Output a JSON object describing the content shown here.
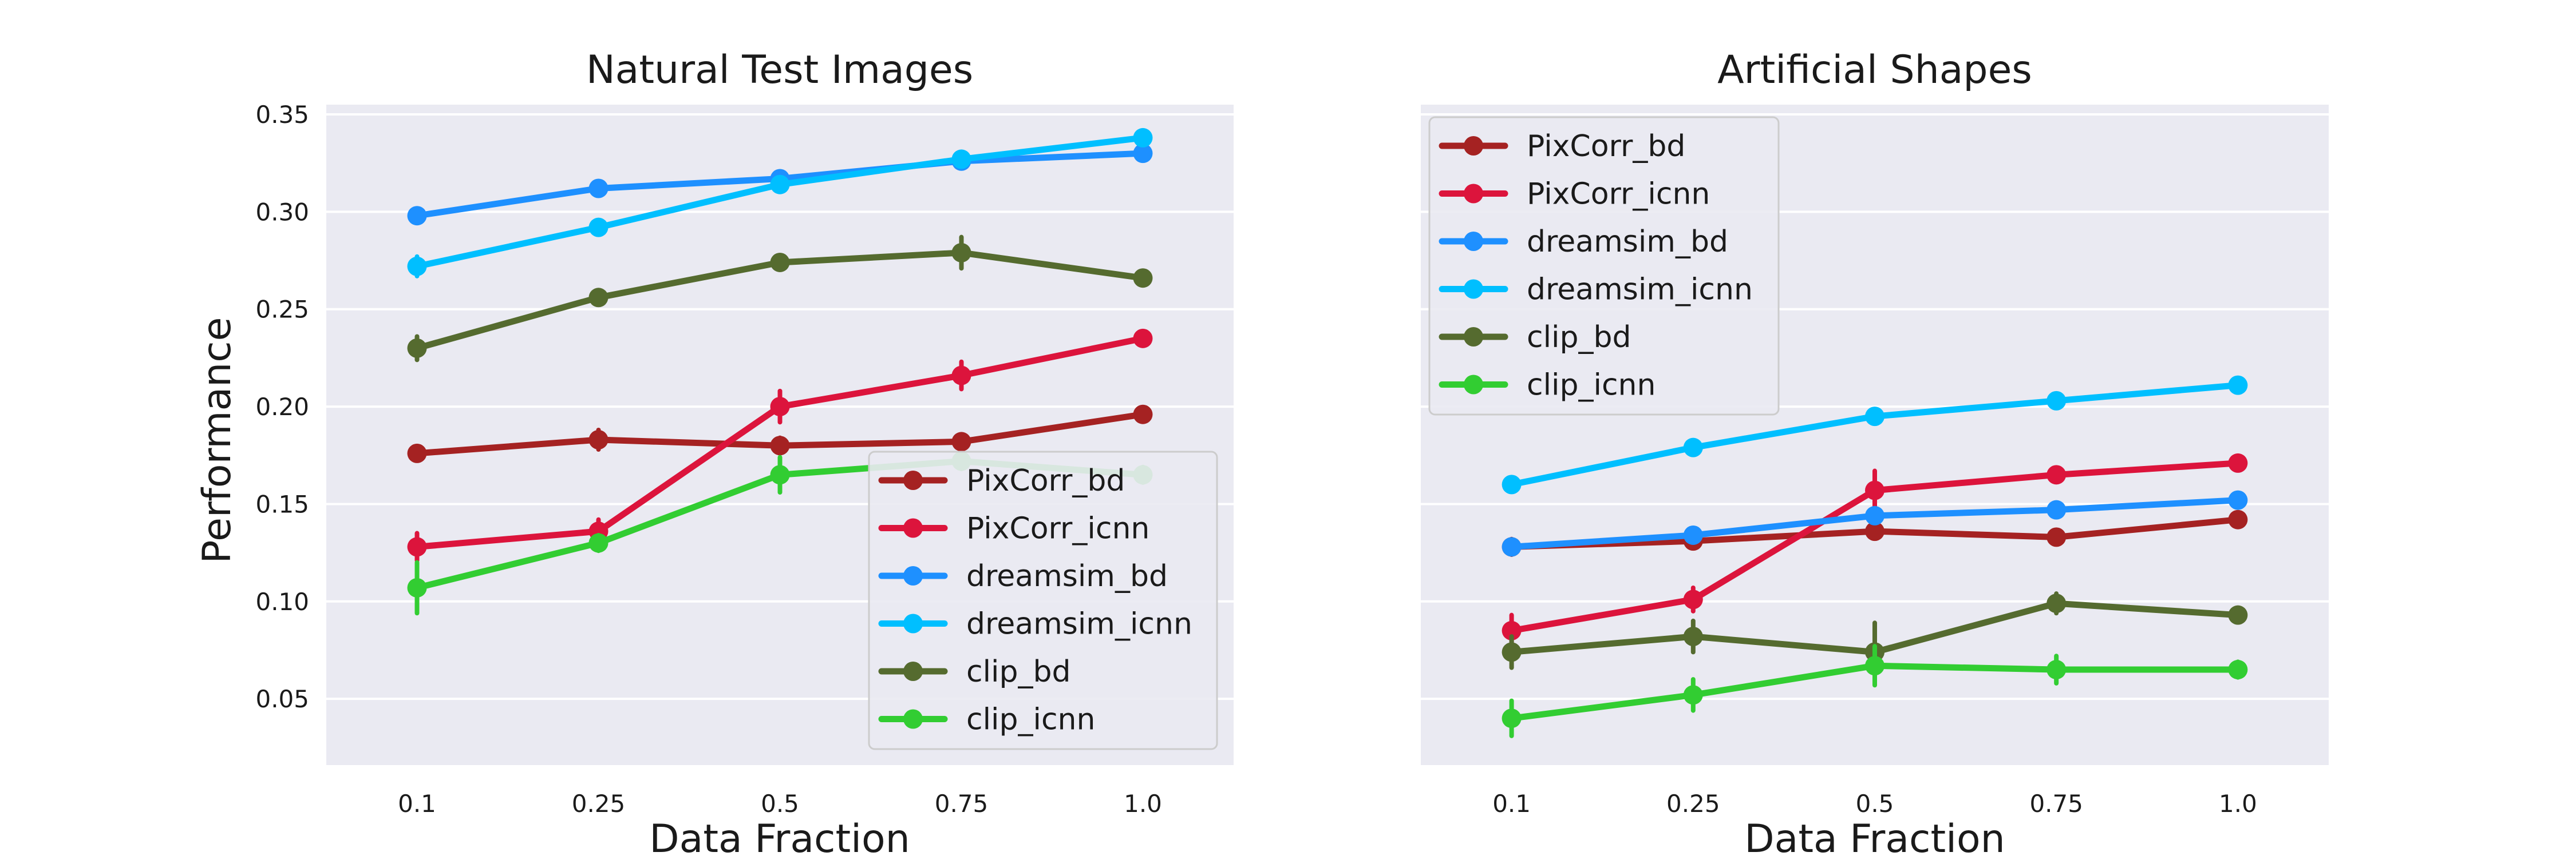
{
  "chart_data": [
    {
      "type": "line",
      "title": "Natural Test Images",
      "xlabel": "Data Fraction",
      "ylabel": "Performance",
      "categories": [
        "0.1",
        "0.25",
        "0.5",
        "0.75",
        "1.0"
      ],
      "yticks": [
        "0.05",
        "0.10",
        "0.15",
        "0.20",
        "0.25",
        "0.30",
        "0.35"
      ],
      "ylim": [
        0.016,
        0.355
      ],
      "grid": true,
      "legend_position": "lower-right",
      "series": [
        {
          "name": "PixCorr_bd",
          "color": "#a52222",
          "values": [
            0.176,
            0.183,
            0.18,
            0.182,
            0.196
          ],
          "err": [
            0.003,
            0.005,
            0.004,
            0.003,
            0.003
          ]
        },
        {
          "name": "PixCorr_icnn",
          "color": "#dc143c",
          "values": [
            0.128,
            0.136,
            0.2,
            0.216,
            0.235
          ],
          "err": [
            0.007,
            0.006,
            0.008,
            0.007,
            0.003
          ]
        },
        {
          "name": "dreamsim_bd",
          "color": "#1e90ff",
          "values": [
            0.298,
            0.312,
            0.317,
            0.326,
            0.33
          ],
          "err": [
            0.003,
            0.002,
            0.002,
            0.002,
            0.003
          ]
        },
        {
          "name": "dreamsim_icnn",
          "color": "#00bfff",
          "values": [
            0.272,
            0.292,
            0.314,
            0.327,
            0.338
          ],
          "err": [
            0.005,
            0.003,
            0.003,
            0.002,
            0.002
          ]
        },
        {
          "name": "clip_bd",
          "color": "#556b2f",
          "values": [
            0.23,
            0.256,
            0.274,
            0.279,
            0.266
          ],
          "err": [
            0.006,
            0.003,
            0.003,
            0.008,
            0.003
          ]
        },
        {
          "name": "clip_icnn",
          "color": "#32cd32",
          "values": [
            0.107,
            0.13,
            0.165,
            0.172,
            0.165
          ],
          "err": [
            0.013,
            0.004,
            0.009,
            0.004,
            0.004
          ]
        }
      ]
    },
    {
      "type": "line",
      "title": "Artificial Shapes",
      "xlabel": "Data Fraction",
      "ylabel": "",
      "categories": [
        "0.1",
        "0.25",
        "0.5",
        "0.75",
        "1.0"
      ],
      "ylim": [
        0.016,
        0.355
      ],
      "grid": true,
      "legend_position": "upper-left",
      "series": [
        {
          "name": "PixCorr_bd",
          "color": "#a52222",
          "values": [
            0.128,
            0.131,
            0.136,
            0.133,
            0.142
          ],
          "err": [
            0.004,
            0.003,
            0.003,
            0.003,
            0.003
          ]
        },
        {
          "name": "PixCorr_icnn",
          "color": "#dc143c",
          "values": [
            0.085,
            0.101,
            0.157,
            0.165,
            0.171
          ],
          "err": [
            0.008,
            0.006,
            0.01,
            0.003,
            0.003
          ]
        },
        {
          "name": "dreamsim_bd",
          "color": "#1e90ff",
          "values": [
            0.128,
            0.134,
            0.144,
            0.147,
            0.152
          ],
          "err": [
            0.003,
            0.003,
            0.003,
            0.003,
            0.003
          ]
        },
        {
          "name": "dreamsim_icnn",
          "color": "#00bfff",
          "values": [
            0.16,
            0.179,
            0.195,
            0.203,
            0.211
          ],
          "err": [
            0.003,
            0.003,
            0.003,
            0.003,
            0.003
          ]
        },
        {
          "name": "clip_bd",
          "color": "#556b2f",
          "values": [
            0.074,
            0.082,
            0.074,
            0.099,
            0.093
          ],
          "err": [
            0.008,
            0.008,
            0.015,
            0.005,
            0.003
          ]
        },
        {
          "name": "clip_icnn",
          "color": "#32cd32",
          "values": [
            0.04,
            0.052,
            0.067,
            0.065,
            0.065
          ],
          "err": [
            0.009,
            0.008,
            0.01,
            0.007,
            0.004
          ]
        }
      ]
    }
  ]
}
